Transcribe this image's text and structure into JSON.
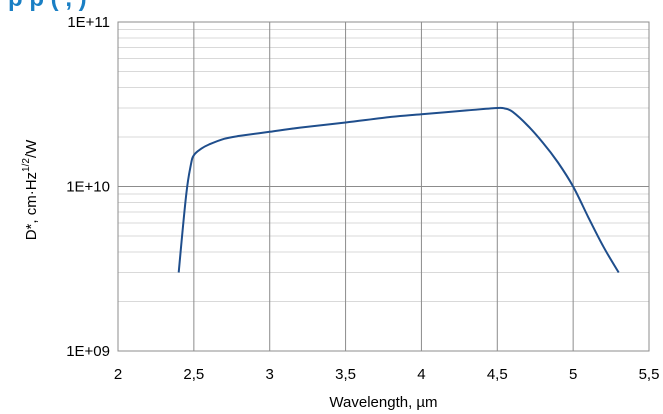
{
  "header": {
    "title_fragment": "p    p    (   ,    )"
  },
  "chart_data": {
    "type": "line",
    "title": "",
    "xlabel": "Wavelength, µm",
    "ylabel_main": "D*, cm·Hz",
    "ylabel_sup": "1/2",
    "ylabel_tail": "/W",
    "xlim": [
      2,
      5.5
    ],
    "ylim": [
      1000000000,
      100000000000
    ],
    "yscale": "log",
    "grid": true,
    "legend": "none",
    "x_tick_labels": [
      "2",
      "2,5",
      "3",
      "3,5",
      "4",
      "4,5",
      "5",
      "5,5"
    ],
    "y_tick_labels": [
      "1E+09",
      "1E+10",
      "1E+11"
    ],
    "series_color": "#1f4e8c",
    "title_color": "#1a7fc4",
    "series": [
      {
        "x": [
          2.4,
          2.45,
          2.48,
          2.5,
          2.55,
          2.6,
          2.7,
          2.8,
          3.0,
          3.2,
          3.5,
          3.8,
          4.0,
          4.3,
          4.5,
          4.55,
          4.6,
          4.7,
          4.8,
          4.9,
          5.0,
          5.1,
          5.2,
          5.3
        ],
        "y": [
          3000000000,
          9000000000,
          13500000000,
          15500000000,
          17000000000,
          18000000000,
          19500000000,
          20300000000,
          21500000000,
          22800000000,
          24500000000,
          26500000000,
          27500000000,
          29000000000,
          30000000000,
          29800000000,
          28500000000,
          23500000000,
          18500000000,
          14000000000,
          10000000000,
          6500000000,
          4300000000,
          3000000000
        ]
      }
    ]
  }
}
